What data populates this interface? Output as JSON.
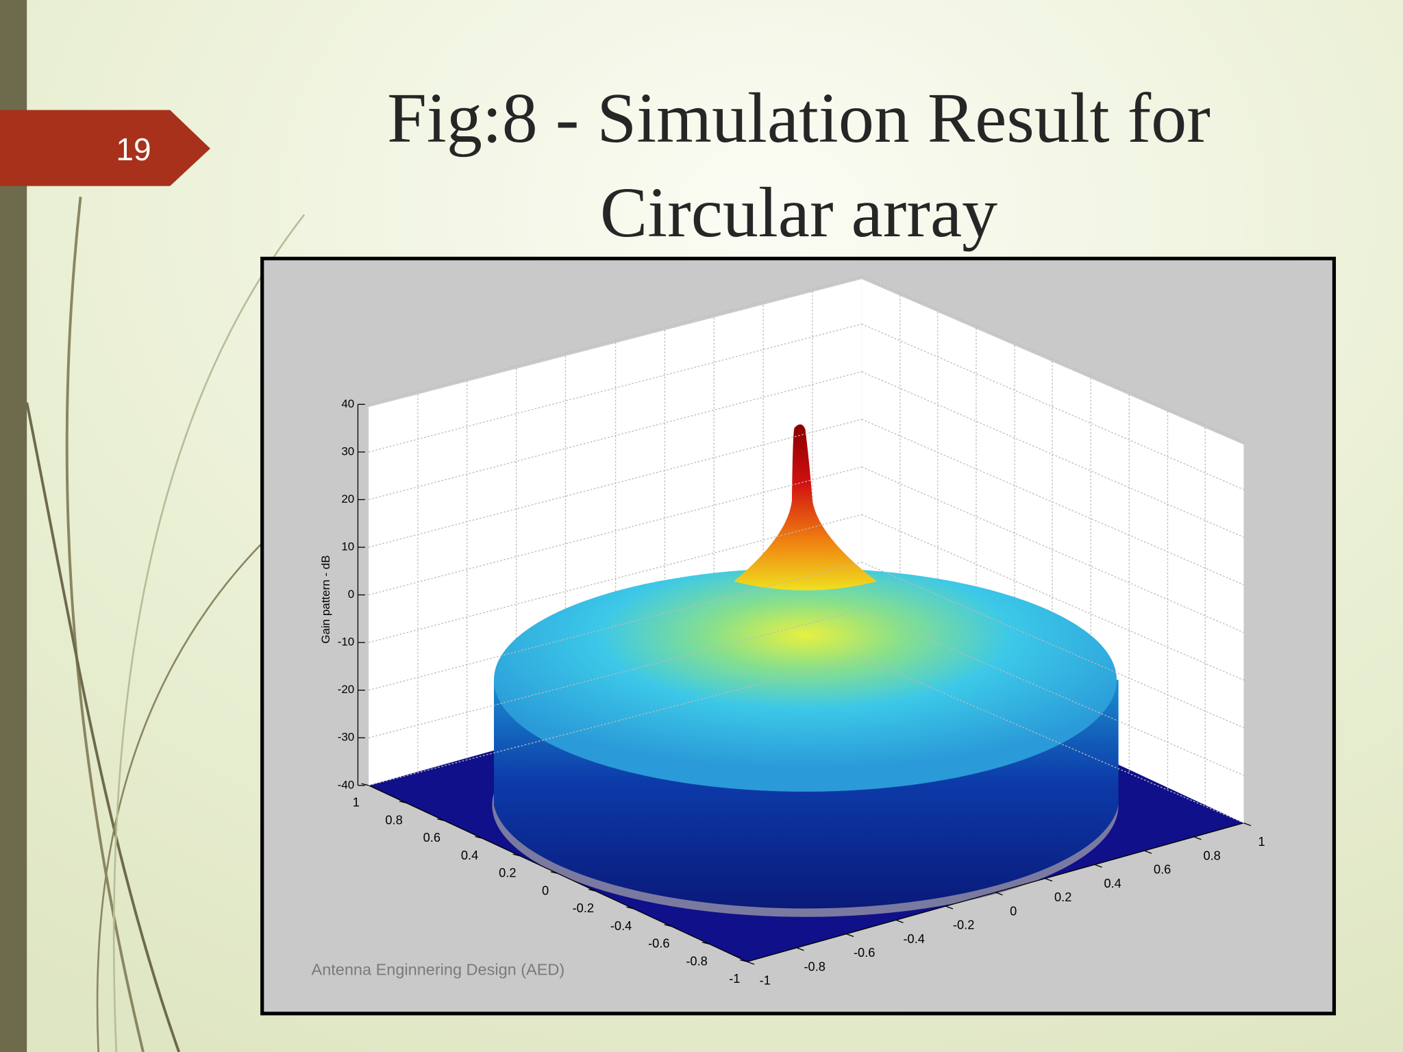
{
  "slide_number": "19",
  "title": "Fig:8 - Simulation Result for Circular array",
  "chart_data": {
    "type": "surface3d",
    "zlabel": "Gain pattern - dB",
    "zlim": [
      -40,
      40
    ],
    "zticks": [
      -40,
      -30,
      -20,
      -10,
      0,
      10,
      20,
      30,
      40
    ],
    "xlim": [
      -1,
      1
    ],
    "xticks": [
      1,
      0.8,
      0.6,
      0.4,
      0.2,
      0,
      -0.2,
      -0.4,
      -0.6,
      -0.8,
      -1
    ],
    "ylim": [
      -1,
      1
    ],
    "yticks": [
      -1,
      -0.8,
      -0.6,
      -0.4,
      -0.2,
      0,
      0.2,
      0.4,
      0.6,
      0.8,
      1
    ],
    "grid": true
  },
  "watermark": "Antenna Enginnering Design (AED)"
}
